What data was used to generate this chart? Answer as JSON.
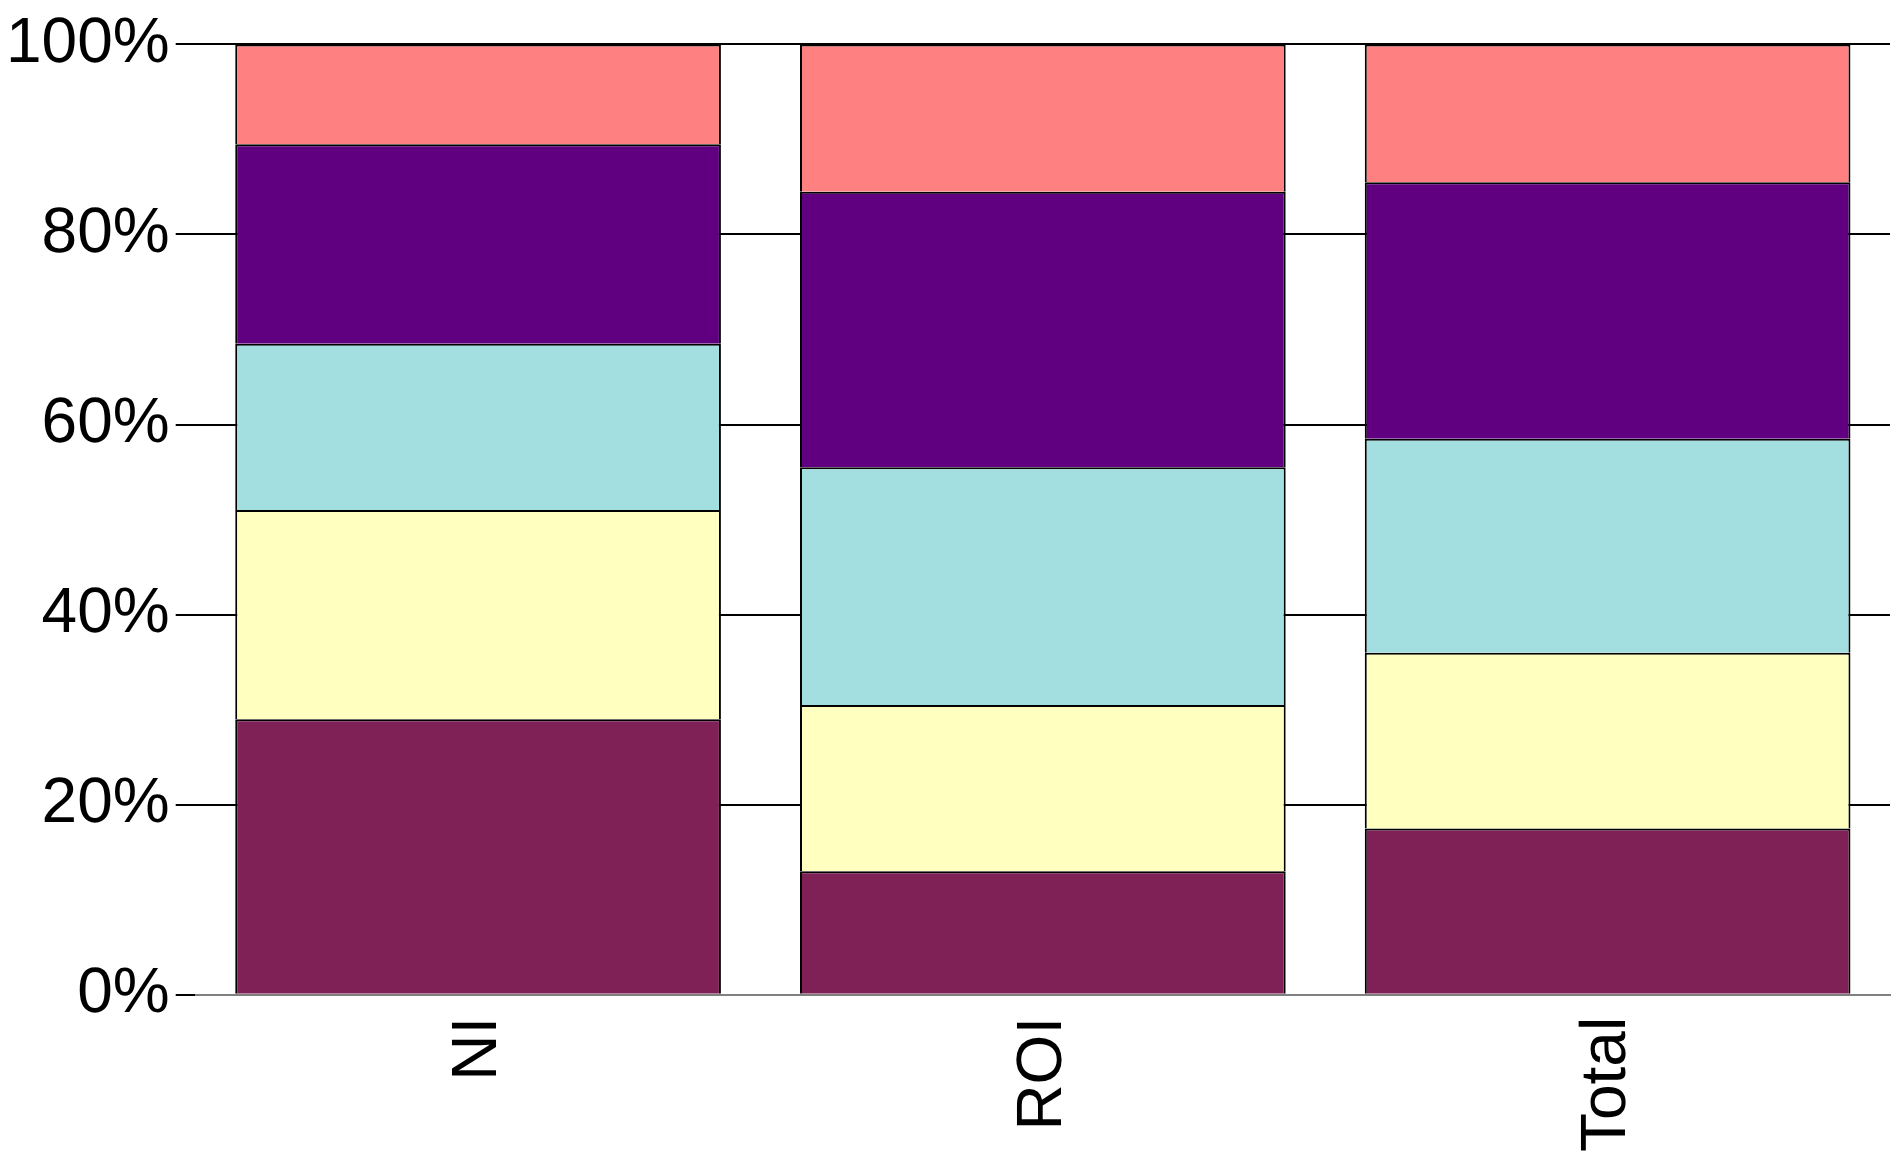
{
  "chart_data": {
    "type": "bar",
    "stacked": true,
    "categories": [
      "NI",
      "ROI",
      "Total"
    ],
    "series": [
      {
        "color": "#7f2157",
        "values": [
          29,
          13,
          17.5
        ]
      },
      {
        "color": "#ffffc0",
        "values": [
          22,
          17.5,
          18.5
        ]
      },
      {
        "color": "#a3dfe0",
        "values": [
          17.5,
          25,
          22.5
        ]
      },
      {
        "color": "#600080",
        "values": [
          21,
          29,
          27
        ]
      },
      {
        "color": "#ff8080",
        "values": [
          10.5,
          15.5,
          14.5
        ]
      }
    ],
    "ylim": [
      0,
      100
    ],
    "yticks": [
      {
        "value": 0,
        "label": "0%"
      },
      {
        "value": 20,
        "label": "20%"
      },
      {
        "value": 40,
        "label": "40%"
      },
      {
        "value": 60,
        "label": "60%"
      },
      {
        "value": 80,
        "label": "80%"
      },
      {
        "value": 100,
        "label": "100%"
      }
    ],
    "grid": "y",
    "legend": false
  }
}
